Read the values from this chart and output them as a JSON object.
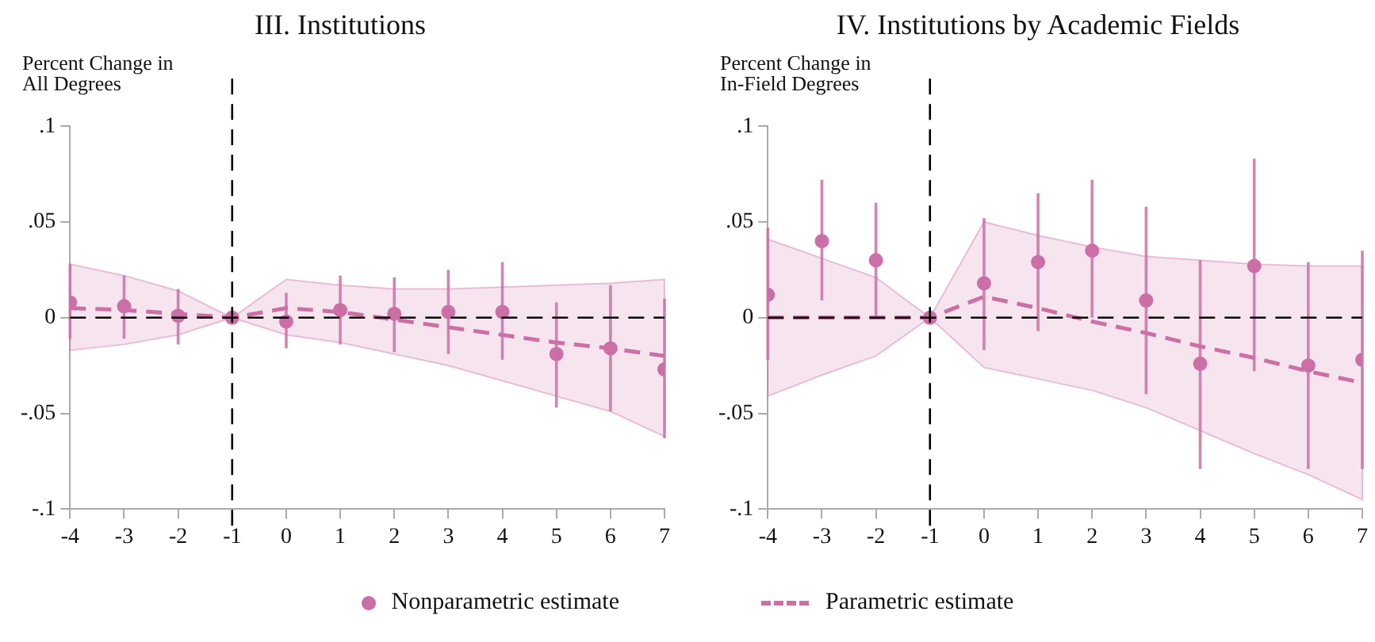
{
  "chart_data": [
    {
      "type": "scatter",
      "title": "III. Institutions",
      "ylabel": "Percent Change in\nAll Degrees",
      "x": [
        -4,
        -3,
        -2,
        -1,
        0,
        1,
        2,
        3,
        4,
        5,
        6,
        7
      ],
      "series": [
        {
          "name": "Nonparametric estimate",
          "marker": "circle",
          "color": "#cc6fa6",
          "values": [
            0.008,
            0.006,
            0.001,
            0,
            -0.002,
            0.004,
            0.002,
            0.003,
            0.003,
            -0.019,
            -0.016,
            -0.027
          ],
          "errors": [
            [
              -0.011,
              0.028
            ],
            [
              -0.011,
              0.022
            ],
            [
              -0.014,
              0.015
            ],
            null,
            [
              -0.016,
              0.013
            ],
            [
              -0.014,
              0.022
            ],
            [
              -0.018,
              0.021
            ],
            [
              -0.019,
              0.025
            ],
            [
              -0.022,
              0.029
            ],
            [
              -0.047,
              0.008
            ],
            [
              -0.049,
              0.017
            ],
            [
              -0.063,
              0.01
            ]
          ]
        },
        {
          "name": "Parametric estimate",
          "type": "line",
          "marker": "none",
          "line_style": "dashed",
          "color": "#cc6fa6",
          "values": [
            0.005,
            0.004,
            0.002,
            0,
            0.005,
            0.003,
            -0.001,
            -0.005,
            -0.009,
            -0.013,
            -0.016,
            -0.02
          ],
          "lower": [
            -0.017,
            -0.014,
            -0.009,
            0,
            -0.009,
            -0.013,
            -0.019,
            -0.025,
            -0.033,
            -0.041,
            -0.049,
            -0.062
          ],
          "upper": [
            0.028,
            0.022,
            0.014,
            0,
            0.02,
            0.017,
            0.015,
            0.015,
            0.016,
            0.017,
            0.018,
            0.02
          ]
        }
      ],
      "xlim": [
        -4,
        7
      ],
      "xticks": [
        -4,
        -3,
        -2,
        -1,
        0,
        1,
        2,
        3,
        4,
        5,
        6,
        7
      ],
      "ylim": [
        -0.1,
        0.1
      ],
      "yticks": [
        {
          "value": -0.1,
          "label": "-.1"
        },
        {
          "value": -0.05,
          "label": "-.05"
        },
        0,
        {
          "value": 0.05,
          "label": ".05"
        },
        {
          "value": 0.1,
          "label": ".1"
        }
      ],
      "ref_lines": [
        {
          "axis": "x",
          "value": -1,
          "color": "#000000",
          "line_style": "dashed"
        },
        {
          "axis": "y",
          "value": 0,
          "color": "#000000",
          "line_style": "dashed"
        }
      ],
      "grid": false,
      "legend": "bottom"
    },
    {
      "type": "scatter",
      "title": "IV. Institutions by Academic Fields",
      "ylabel": "Percent Change in\nIn-Field Degrees",
      "x": [
        -4,
        -3,
        -2,
        -1,
        0,
        1,
        2,
        3,
        4,
        5,
        6,
        7
      ],
      "series": [
        {
          "name": "Nonparametric estimate",
          "marker": "circle",
          "color": "#cc6fa6",
          "values": [
            0.012,
            0.04,
            0.03,
            0,
            0.018,
            0.029,
            0.035,
            0.009,
            -0.024,
            0.027,
            -0.025,
            -0.022
          ],
          "errors": [
            [
              -0.022,
              0.047
            ],
            [
              0.009,
              0.072
            ],
            [
              0,
              0.06
            ],
            null,
            [
              -0.017,
              0.052
            ],
            [
              -0.007,
              0.065
            ],
            [
              0,
              0.072
            ],
            [
              -0.04,
              0.058
            ],
            [
              -0.079,
              0.03
            ],
            [
              -0.028,
              0.083
            ],
            [
              -0.079,
              0.029
            ],
            [
              -0.079,
              0.035
            ]
          ]
        },
        {
          "name": "Parametric estimate",
          "type": "line",
          "marker": "none",
          "line_style": "dashed",
          "color": "#cc6fa6",
          "values": [
            0,
            0,
            0,
            0,
            0.011,
            0.005,
            -0.002,
            -0.008,
            -0.015,
            -0.021,
            -0.028,
            -0.034
          ],
          "lower": [
            -0.041,
            -0.03,
            -0.02,
            0,
            -0.026,
            -0.032,
            -0.038,
            -0.047,
            -0.059,
            -0.071,
            -0.082,
            -0.095
          ],
          "upper": [
            0.041,
            0.031,
            0.021,
            0,
            0.05,
            0.043,
            0.037,
            0.032,
            0.03,
            0.028,
            0.027,
            0.027
          ]
        }
      ],
      "xlim": [
        -4,
        7
      ],
      "xticks": [
        -4,
        -3,
        -2,
        -1,
        0,
        1,
        2,
        3,
        4,
        5,
        6,
        7
      ],
      "ylim": [
        -0.1,
        0.1
      ],
      "yticks": [
        {
          "value": -0.1,
          "label": "-.1"
        },
        {
          "value": -0.05,
          "label": "-.05"
        },
        0,
        {
          "value": 0.05,
          "label": ".05"
        },
        {
          "value": 0.1,
          "label": ".1"
        }
      ],
      "ref_lines": [
        {
          "axis": "x",
          "value": -1,
          "color": "#000000",
          "line_style": "dashed"
        },
        {
          "axis": "y",
          "value": 0,
          "color": "#000000",
          "line_style": "dashed"
        }
      ],
      "grid": false,
      "legend": "bottom"
    }
  ]
}
